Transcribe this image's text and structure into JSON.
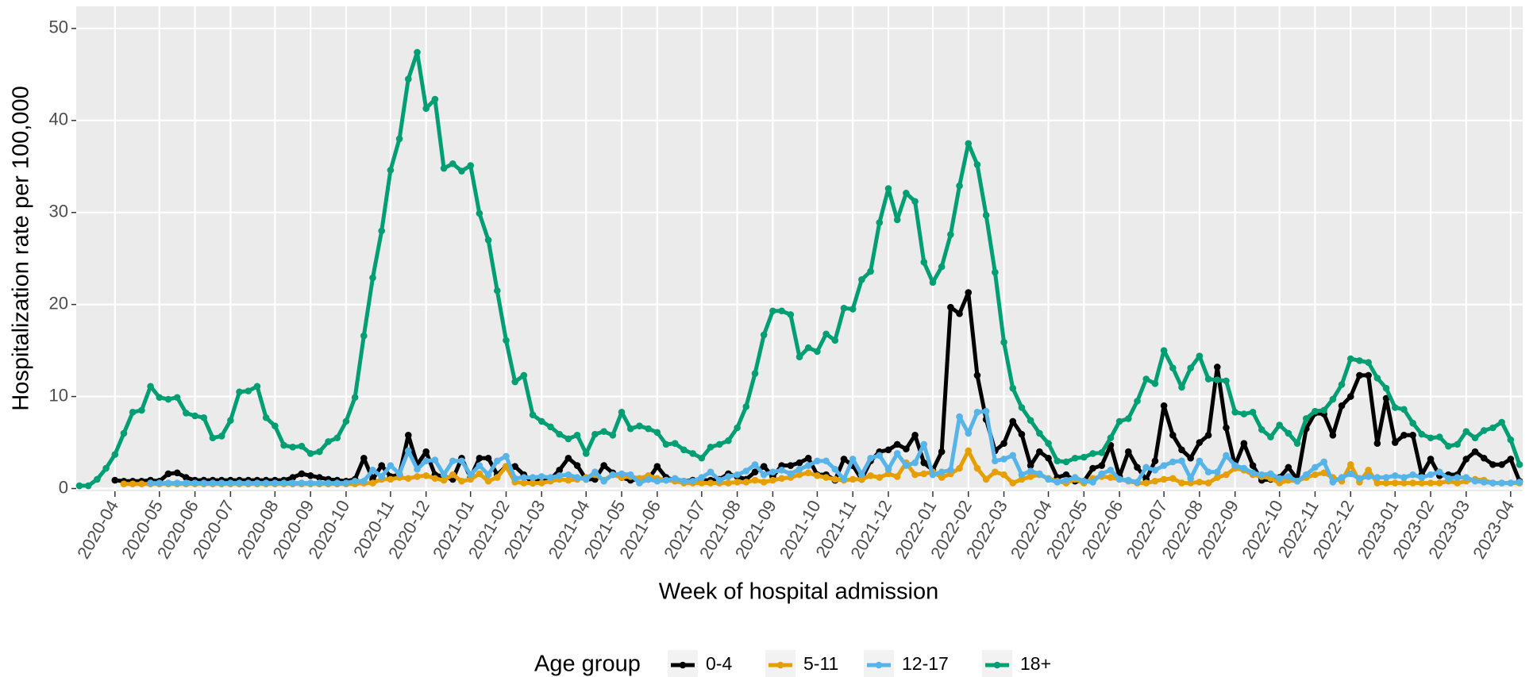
{
  "chart_data": {
    "type": "line",
    "x_label": "Week of hospital admission",
    "y_label": "Hospitalization rate per 100,000",
    "legend_title": "Age group",
    "legend_position": "bottom",
    "grid": true,
    "ylim": [
      -0.3,
      52.4
    ],
    "yticks": [
      0,
      10,
      20,
      30,
      40,
      50
    ],
    "categories": [
      null,
      null,
      null,
      null,
      "2020-04",
      null,
      null,
      null,
      null,
      "2020-05",
      null,
      null,
      null,
      "2020-06",
      null,
      null,
      null,
      "2020-07",
      null,
      null,
      null,
      null,
      "2020-08",
      null,
      null,
      null,
      "2020-09",
      null,
      null,
      null,
      "2020-10",
      null,
      null,
      null,
      null,
      "2020-11",
      null,
      null,
      null,
      "2020-12",
      null,
      null,
      null,
      null,
      "2021-01",
      null,
      null,
      null,
      "2021-02",
      null,
      null,
      null,
      "2021-03",
      null,
      null,
      null,
      null,
      "2021-04",
      null,
      null,
      null,
      "2021-05",
      null,
      null,
      null,
      "2021-06",
      null,
      null,
      null,
      null,
      "2021-07",
      null,
      null,
      null,
      "2021-08",
      null,
      null,
      null,
      "2021-09",
      null,
      null,
      null,
      null,
      "2021-10",
      null,
      null,
      null,
      "2021-11",
      null,
      null,
      null,
      "2021-12",
      null,
      null,
      null,
      null,
      "2022-01",
      null,
      null,
      null,
      "2022-02",
      null,
      null,
      null,
      "2022-03",
      null,
      null,
      null,
      null,
      "2022-04",
      null,
      null,
      null,
      "2022-05",
      null,
      null,
      null,
      "2022-06",
      null,
      null,
      null,
      null,
      "2022-07",
      null,
      null,
      null,
      "2022-08",
      null,
      null,
      null,
      "2022-09",
      null,
      null,
      null,
      null,
      "2022-10",
      null,
      null,
      null,
      "2022-11",
      null,
      null,
      null,
      "2022-12",
      null,
      null,
      null,
      null,
      "2023-01",
      null,
      null,
      null,
      "2023-02",
      null,
      null,
      null,
      "2023-03",
      null,
      null,
      null,
      null,
      "2023-04",
      null
    ],
    "series": [
      {
        "name": "0-4",
        "color": "#000000",
        "values": [
          null,
          null,
          null,
          null,
          0.9,
          0.8,
          0.8,
          0.8,
          0.9,
          0.8,
          1.6,
          1.7,
          1.2,
          0.9,
          0.9,
          0.9,
          0.9,
          0.9,
          0.9,
          0.9,
          0.9,
          0.9,
          0.9,
          0.9,
          1.2,
          1.6,
          1.4,
          1.2,
          1,
          0.9,
          0.8,
          1,
          3.3,
          1,
          2.5,
          1.3,
          1.5,
          5.8,
          2.6,
          4,
          1.5,
          1.3,
          1,
          3.3,
          1.2,
          3.3,
          3.3,
          1.5,
          2.4,
          2.4,
          1.5,
          0.6,
          1,
          1,
          2,
          3.3,
          2.5,
          1,
          1,
          2.5,
          1.7,
          1.2,
          0.9,
          1,
          1,
          2.4,
          1.2,
          0.9,
          0.8,
          0.9,
          0.9,
          0.9,
          1,
          1.6,
          1.3,
          1,
          1.8,
          2.4,
          1.3,
          2.5,
          2.5,
          2.8,
          3.3,
          1.5,
          1.5,
          0.9,
          3.2,
          2.5,
          1,
          3,
          4,
          4.2,
          4.8,
          4.3,
          5.8,
          2.8,
          2,
          4,
          19.7,
          19,
          21.3,
          12.3,
          7.5,
          4.1,
          4.9,
          7.3,
          5.9,
          2.5,
          4,
          3.3,
          1.2,
          1.5,
          0.8,
          0.8,
          2.2,
          2.5,
          4.7,
          1.3,
          4,
          2.3,
          1,
          3,
          9,
          5.8,
          4.2,
          3.3,
          5,
          5.8,
          13.2,
          6.6,
          2.5,
          4.9,
          2.5,
          0.9,
          1,
          1.2,
          2.3,
          1,
          6.5,
          8.2,
          8.1,
          5.8,
          9,
          10,
          12.3,
          12.3,
          4.9,
          9.8,
          5,
          5.8,
          5.8,
          1.5,
          3.2,
          1.4,
          1.5,
          1.5,
          3.2,
          4,
          3.3,
          2.6,
          2.6,
          3.2,
          0.8
        ]
      },
      {
        "name": "5-11",
        "color": "#E69F00",
        "values": [
          null,
          null,
          null,
          null,
          null,
          0.5,
          0.5,
          0.5,
          0.5,
          0.5,
          0.5,
          0.5,
          0.5,
          0.5,
          0.5,
          0.5,
          0.5,
          0.5,
          0.5,
          0.5,
          0.5,
          0.5,
          0.5,
          0.5,
          0.5,
          0.5,
          0.5,
          0.5,
          0.5,
          0.5,
          0.5,
          0.5,
          0.6,
          0.6,
          1,
          1,
          1.2,
          1.1,
          1.3,
          1.4,
          1.1,
          0.9,
          1.5,
          0.8,
          1,
          1.6,
          0.8,
          1.2,
          2.4,
          0.7,
          0.6,
          0.6,
          0.6,
          0.8,
          1,
          0.9,
          1,
          1.2,
          1.5,
          0.9,
          1.5,
          1.2,
          1.3,
          1.1,
          1.4,
          1.1,
          0.9,
          0.8,
          0.6,
          0.6,
          0.6,
          0.6,
          0.6,
          0.6,
          0.7,
          0.7,
          0.9,
          0.7,
          0.9,
          1.1,
          1.2,
          1.5,
          1.7,
          1.4,
          1.2,
          1,
          0.9,
          1,
          1,
          1.4,
          1.2,
          1.6,
          1.3,
          2.8,
          1.5,
          1.6,
          1.8,
          1.2,
          1.6,
          2.2,
          4.1,
          2.2,
          1,
          1.8,
          1.5,
          0.6,
          1,
          1.3,
          1.5,
          1.1,
          0.8,
          0.6,
          1,
          0.6,
          1.1,
          1.3,
          1.2,
          1,
          0.8,
          0.6,
          0.6,
          0.8,
          1,
          1.1,
          0.6,
          0.6,
          0.7,
          0.6,
          1.2,
          1.5,
          2.2,
          2,
          1.5,
          1.3,
          1.1,
          0.6,
          0.9,
          0.8,
          1.2,
          1.5,
          1.7,
          1.2,
          0.8,
          2.6,
          0.7,
          2,
          0.6,
          0.6,
          0.6,
          0.6,
          0.6,
          0.6,
          0.6,
          0.6,
          0.8,
          0.6,
          0.8,
          1,
          0.9,
          0.6,
          0.6,
          0.6,
          0.6
        ]
      },
      {
        "name": "12-17",
        "color": "#56B4E9",
        "values": [
          null,
          null,
          null,
          null,
          null,
          null,
          null,
          null,
          0.6,
          0.6,
          0.6,
          0.6,
          0.6,
          0.6,
          0.6,
          0.6,
          0.6,
          0.6,
          0.6,
          0.6,
          0.6,
          0.6,
          0.6,
          0.6,
          0.6,
          0.6,
          0.6,
          0.6,
          0.6,
          0.6,
          0.6,
          0.8,
          0.8,
          2,
          1.3,
          2.5,
          1.6,
          4.1,
          2.1,
          3,
          3.1,
          1.5,
          3,
          3,
          1.5,
          2.5,
          1.5,
          3,
          3.5,
          1.1,
          1.2,
          1.2,
          1.3,
          1.2,
          1.4,
          1.5,
          1.2,
          1,
          1.8,
          0.8,
          1.5,
          1.6,
          1.5,
          0.6,
          1,
          0.8,
          0.9,
          1.1,
          0.8,
          0.8,
          1.2,
          1.8,
          0.9,
          1.3,
          1.5,
          1.9,
          2.6,
          1.5,
          1.8,
          2,
          1.6,
          2.1,
          2.5,
          3,
          3,
          2.1,
          1,
          3.2,
          1.5,
          3.3,
          3.6,
          2.1,
          3.8,
          2.5,
          2.8,
          4.8,
          1.5,
          1.8,
          2,
          7.8,
          6,
          8.3,
          8.4,
          3,
          3.2,
          3.6,
          1.5,
          1.9,
          1.6,
          1,
          0.7,
          0.9,
          1.2,
          0.8,
          0.7,
          1.6,
          2,
          1,
          0.9,
          0.7,
          2.3,
          2,
          2.5,
          2.9,
          3,
          1.1,
          3,
          1.8,
          1.8,
          3.6,
          2.5,
          2.2,
          1.7,
          1.5,
          1.6,
          1.1,
          1.3,
          0.8,
          1.5,
          2.3,
          2.9,
          0.7,
          1.2,
          1.6,
          1.1,
          1.3,
          1.2,
          1.2,
          1.4,
          1.2,
          1.5,
          1.2,
          1.5,
          1.8,
          1.1,
          1.2,
          1.2,
          0.8,
          0.7,
          0.6,
          0.6,
          0.6,
          0.7
        ]
      },
      {
        "name": "18+",
        "color": "#009E73",
        "values": [
          0.3,
          0.3,
          1,
          2.2,
          3.7,
          6,
          8.3,
          8.5,
          11.1,
          9.9,
          9.7,
          9.9,
          8.2,
          7.9,
          7.7,
          5.5,
          5.7,
          7.4,
          10.5,
          10.6,
          11.1,
          7.7,
          6.8,
          4.7,
          4.5,
          4.6,
          3.8,
          4,
          5.1,
          5.5,
          7.3,
          9.9,
          16.6,
          22.9,
          28,
          34.6,
          38,
          44.5,
          47.4,
          41.3,
          42.3,
          34.8,
          35.3,
          34.5,
          35.1,
          29.9,
          27,
          21.5,
          16.1,
          11.6,
          12.3,
          8,
          7.3,
          6.7,
          5.9,
          5.4,
          5.8,
          3.8,
          5.9,
          6.2,
          5.8,
          8.3,
          6.5,
          6.8,
          6.5,
          6.1,
          4.8,
          4.9,
          4.2,
          3.8,
          3.3,
          4.5,
          4.8,
          5.2,
          6.6,
          8.9,
          12.5,
          16.7,
          19.3,
          19.3,
          18.9,
          14.3,
          15.3,
          14.9,
          16.8,
          16.1,
          19.6,
          19.5,
          22.7,
          23.6,
          28.9,
          32.6,
          29.2,
          32.1,
          31.2,
          24.6,
          22.4,
          24.1,
          27.6,
          32.9,
          37.5,
          35.2,
          29.7,
          23.5,
          15.9,
          10.9,
          8.8,
          7.4,
          6,
          4.9,
          3,
          2.9,
          3.3,
          3.4,
          3.8,
          3.9,
          5.5,
          7.3,
          7.6,
          9.5,
          11.9,
          11.4,
          15,
          13.1,
          11,
          13.1,
          14.4,
          11.9,
          11.8,
          11.7,
          8.3,
          8.1,
          8.3,
          6.4,
          5.6,
          6.9,
          6,
          4.9,
          7.6,
          8.4,
          8.5,
          9.7,
          11.3,
          14.1,
          13.9,
          13.7,
          12,
          10.9,
          8.8,
          8.6,
          7.1,
          5.9,
          5.5,
          5.6,
          4.6,
          4.8,
          6.2,
          5.5,
          6.3,
          6.6,
          7.2,
          5.3,
          2.6
        ]
      }
    ]
  }
}
